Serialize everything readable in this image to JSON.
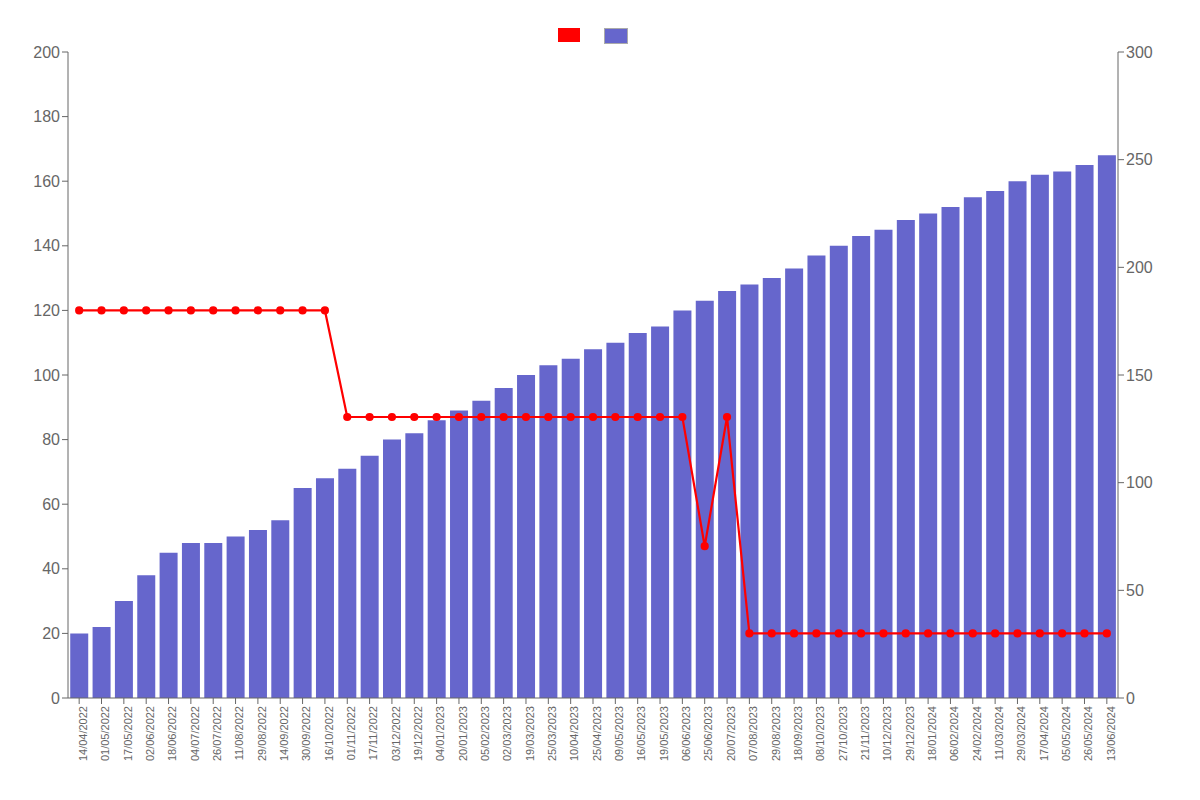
{
  "chart_data": {
    "type": "bar",
    "categories": [
      "14/04/2022",
      "01/05/2022",
      "17/05/2022",
      "02/06/2022",
      "18/06/2022",
      "04/07/2022",
      "26/07/2022",
      "11/08/2022",
      "29/08/2022",
      "14/09/2022",
      "30/09/2022",
      "16/10/2022",
      "01/11/2022",
      "17/11/2022",
      "03/12/2022",
      "19/12/2022",
      "04/01/2023",
      "20/01/2023",
      "05/02/2023",
      "02/03/2023",
      "19/03/2023",
      "25/03/2023",
      "10/04/2023",
      "25/04/2023",
      "09/05/2023",
      "16/05/2023",
      "19/05/2023",
      "06/06/2023",
      "25/06/2023",
      "20/07/2023",
      "07/08/2023",
      "29/08/2023",
      "18/09/2023",
      "08/10/2023",
      "27/10/2023",
      "21/11/2023",
      "10/12/2023",
      "29/12/2023",
      "18/01/2024",
      "06/02/2024",
      "24/02/2024",
      "11/03/2024",
      "29/03/2024",
      "17/04/2024",
      "05/05/2024",
      "26/05/2024",
      "13/06/2024"
    ],
    "series": [
      {
        "type": "bar",
        "color": "#6666cc",
        "values": [
          20,
          22,
          30,
          38,
          45,
          48,
          48,
          50,
          52,
          55,
          65,
          68,
          71,
          75,
          80,
          82,
          86,
          89,
          92,
          96,
          100,
          103,
          105,
          108,
          110,
          113,
          115,
          120,
          123,
          126,
          128,
          130,
          133,
          137,
          140,
          143,
          145,
          148,
          150,
          152,
          155,
          157,
          160,
          162,
          163,
          165,
          168
        ]
      },
      {
        "type": "line",
        "color": "#ff0000",
        "marker": "circle",
        "values": [
          120,
          120,
          120,
          120,
          120,
          120,
          120,
          120,
          120,
          120,
          120,
          120,
          87,
          87,
          87,
          87,
          87,
          87,
          87,
          87,
          87,
          87,
          87,
          87,
          87,
          87,
          87,
          87,
          47,
          87,
          20,
          20,
          20,
          20,
          20,
          20,
          20,
          20,
          20,
          20,
          20,
          20,
          20,
          20,
          20,
          20,
          20
        ]
      }
    ],
    "ylim": [
      0,
      200
    ],
    "yticks": [
      0,
      20,
      40,
      60,
      80,
      100,
      120,
      140,
      160,
      180,
      200
    ],
    "y2lim": [
      0,
      300
    ],
    "y2ticks": [
      0,
      50,
      100,
      150,
      200,
      250,
      300
    ],
    "grid": false,
    "legend": "top"
  }
}
